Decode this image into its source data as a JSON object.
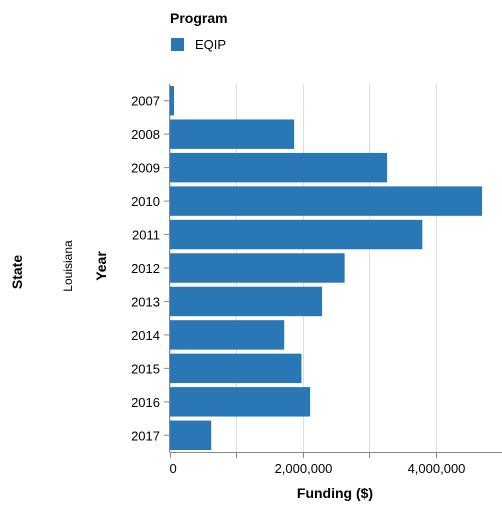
{
  "chart_data": {
    "type": "bar",
    "orientation": "horizontal",
    "legend": {
      "title": "Program",
      "placement": "top-left"
    },
    "row_facet": {
      "title": "State",
      "value": "Louisiana"
    },
    "categories": [
      "2007",
      "2008",
      "2009",
      "2010",
      "2011",
      "2012",
      "2013",
      "2014",
      "2015",
      "2016",
      "2017"
    ],
    "series": [
      {
        "name": "EQIP",
        "color": "#2a77b5",
        "values": [
          60000,
          1870000,
          3270000,
          4700000,
          3800000,
          2630000,
          2290000,
          1720000,
          1980000,
          2110000,
          620000
        ]
      }
    ],
    "xlabel": "Funding ($)",
    "ylabel": "Year",
    "xlim": [
      0,
      5000000
    ],
    "xticks": [
      0,
      1000000,
      2000000,
      3000000,
      4000000,
      5000000
    ],
    "xtick_labels": [
      "0",
      "",
      "2,000,000",
      "",
      "4,000,000",
      ""
    ],
    "grid": true
  }
}
